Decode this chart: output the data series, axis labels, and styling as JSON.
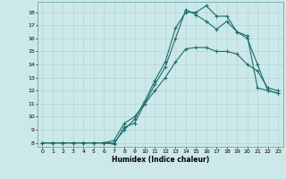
{
  "title": "",
  "xlabel": "Humidex (Indice chaleur)",
  "bg_color": "#cce8e8",
  "line_color": "#1a6e6e",
  "grid_color": "#aad4d4",
  "spine_color": "#6aacac",
  "xlim": [
    -0.5,
    23.5
  ],
  "ylim": [
    7.7,
    18.8
  ],
  "xticks": [
    0,
    1,
    2,
    3,
    4,
    5,
    6,
    7,
    8,
    9,
    10,
    11,
    12,
    13,
    14,
    15,
    16,
    17,
    18,
    19,
    20,
    21,
    22,
    23
  ],
  "yticks": [
    8,
    9,
    10,
    11,
    12,
    13,
    14,
    15,
    16,
    17,
    18
  ],
  "curve1_x": [
    0,
    1,
    2,
    3,
    4,
    5,
    6,
    7,
    8,
    9,
    10,
    11,
    12,
    13,
    14,
    15,
    16,
    17,
    18,
    19,
    20,
    21,
    22,
    23
  ],
  "curve1_y": [
    8,
    8,
    8,
    8,
    8,
    8,
    8,
    8.2,
    9.5,
    10.0,
    11.0,
    12.0,
    13.0,
    14.2,
    15.2,
    15.3,
    15.3,
    15.0,
    15.0,
    14.8,
    14.0,
    13.5,
    12.2,
    12.0
  ],
  "curve2_x": [
    0,
    1,
    2,
    3,
    4,
    5,
    6,
    7,
    8,
    9,
    10,
    11,
    12,
    13,
    14,
    15,
    16,
    17,
    18,
    19,
    20,
    21,
    22,
    23
  ],
  "curve2_y": [
    8,
    8,
    8,
    8,
    8,
    8,
    8,
    8.0,
    9.0,
    9.8,
    11.2,
    12.8,
    14.2,
    16.8,
    18.0,
    18.0,
    18.5,
    17.7,
    17.7,
    16.5,
    16.2,
    12.2,
    12.0,
    11.8
  ],
  "curve3_x": [
    0,
    1,
    2,
    3,
    4,
    5,
    6,
    7,
    8,
    9,
    10,
    11,
    12,
    13,
    14,
    15,
    16,
    17,
    18,
    19,
    20,
    21,
    22,
    23
  ],
  "curve3_y": [
    8,
    8,
    8,
    8,
    8,
    8,
    8,
    7.9,
    9.2,
    9.5,
    11.0,
    12.5,
    13.8,
    16.0,
    18.2,
    17.8,
    17.3,
    16.7,
    17.3,
    16.5,
    16.0,
    14.0,
    12.0,
    11.8
  ]
}
